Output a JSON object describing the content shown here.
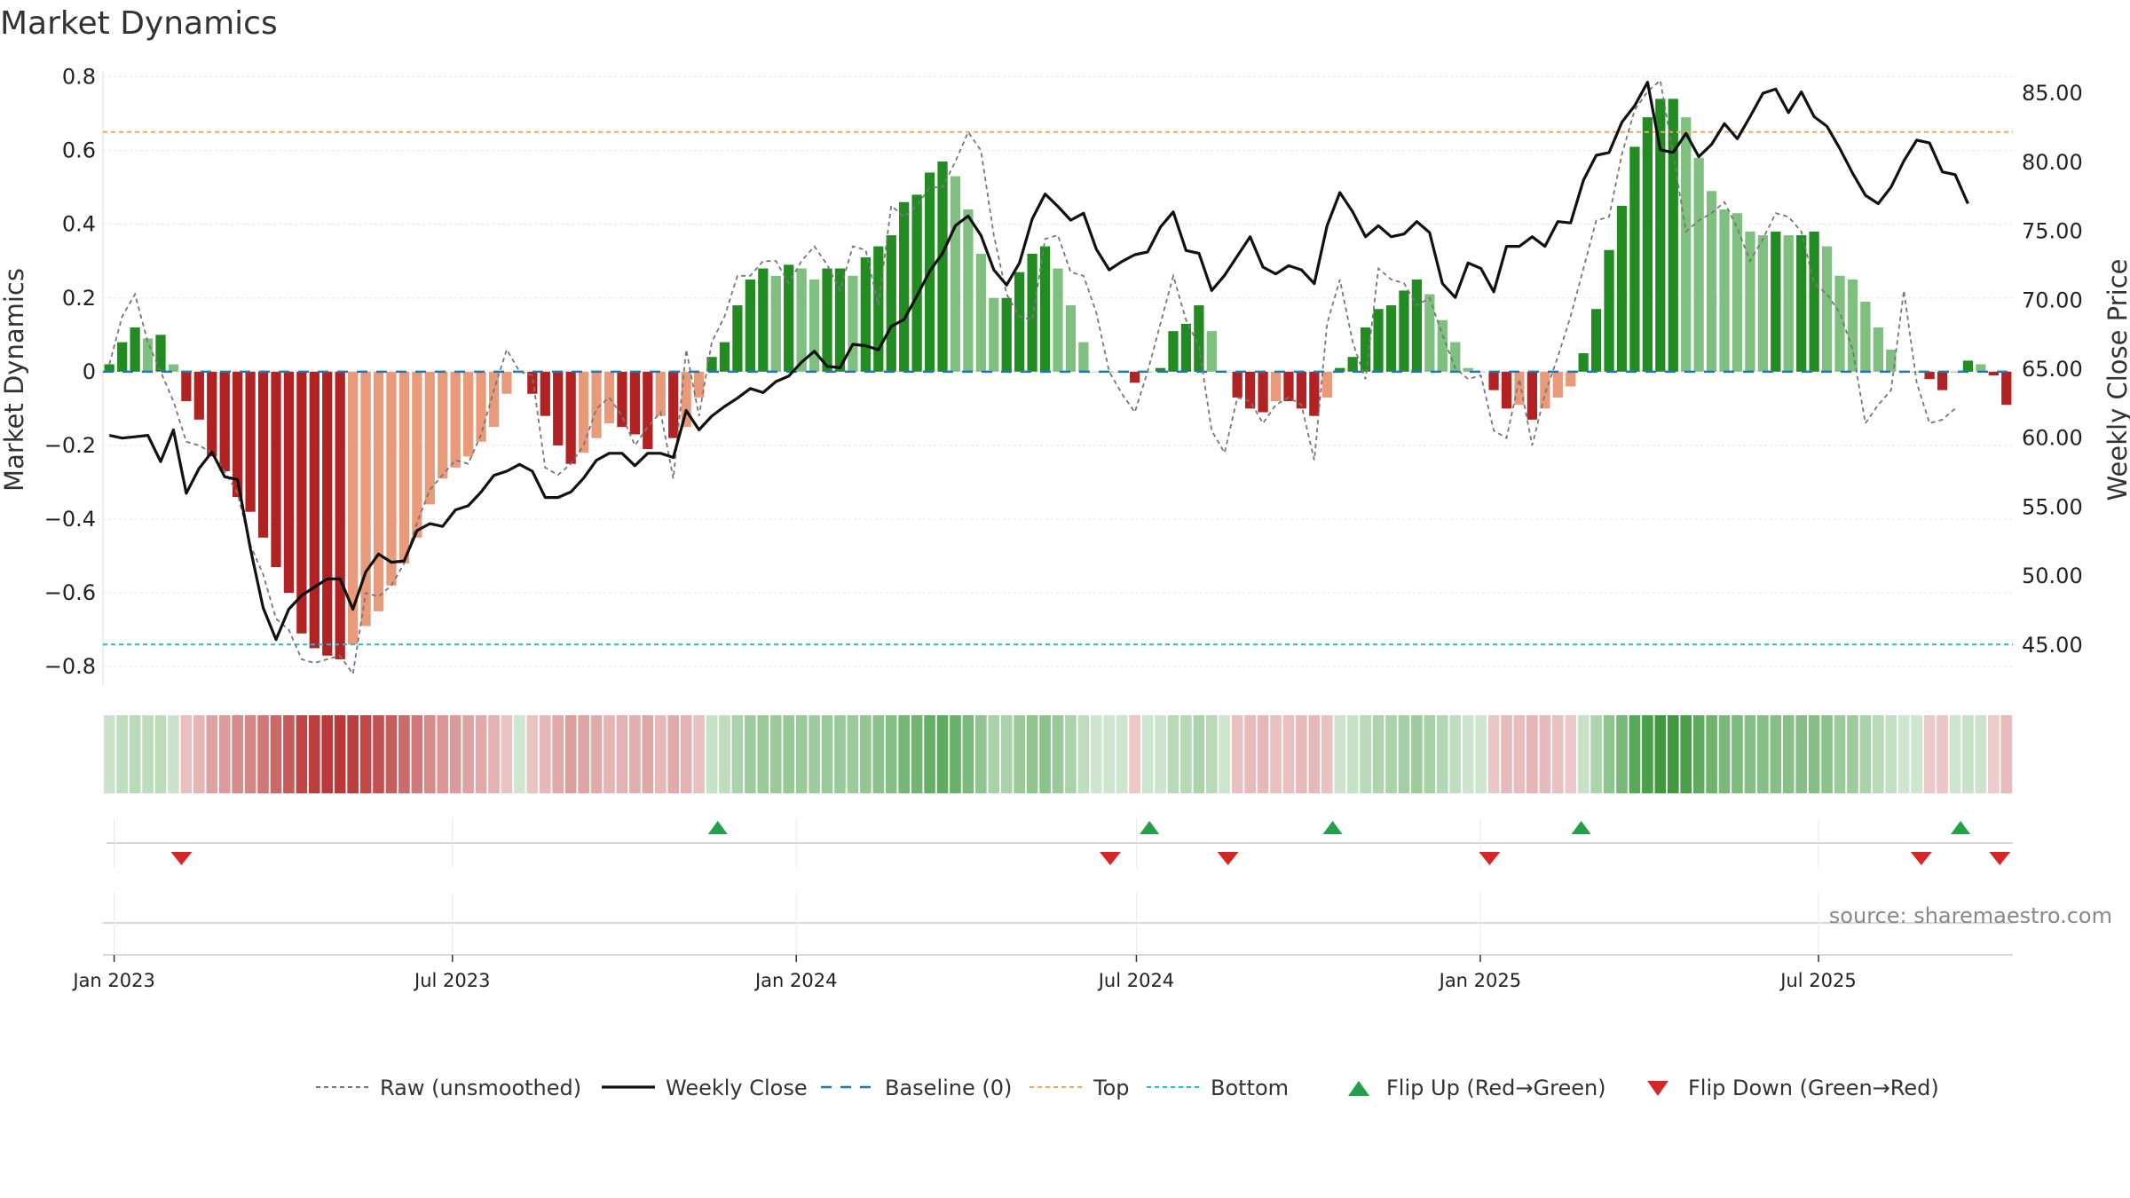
{
  "chart_data": {
    "type": "bar",
    "title": "Market Dynamics",
    "ylabel_left": "Market Dynamics",
    "ylabel_right": "Weekly Close Price",
    "ylim_left": [
      -0.85,
      0.83
    ],
    "ylim_right": [
      42.1,
      87.0
    ],
    "yticks_left": [
      "0.8",
      "0.6",
      "0.4",
      "0.2",
      "0",
      "−0.2",
      "−0.4",
      "−0.6",
      "−0.8"
    ],
    "yticks_left_values": [
      0.8,
      0.6,
      0.4,
      0.2,
      0,
      -0.2,
      -0.4,
      -0.6,
      -0.8
    ],
    "yticks_right": [
      "85.00",
      "80.00",
      "75.00",
      "70.00",
      "65.00",
      "60.00",
      "55.00",
      "50.00",
      "45.00"
    ],
    "yticks_right_values": [
      85,
      80,
      75,
      70,
      65,
      60,
      55,
      50,
      45
    ],
    "x_start": "2022-12-26",
    "x_end": "2025-10-13",
    "x_ticks": [
      {
        "label": "Jan 2023",
        "date": "2023-01-01"
      },
      {
        "label": "Jul 2023",
        "date": "2023-07-01"
      },
      {
        "label": "Jan 2024",
        "date": "2024-01-01"
      },
      {
        "label": "Jul 2024",
        "date": "2024-07-01"
      },
      {
        "label": "Jan 2025",
        "date": "2025-01-01"
      },
      {
        "label": "Jul 2025",
        "date": "2025-07-01"
      }
    ],
    "grid": true,
    "legend_position": "bottom-center",
    "top_level": 0.65,
    "bottom_level": -0.74,
    "baseline": 0,
    "weekly_close": [
      60.2,
      60.0,
      60.1,
      60.2,
      58.3,
      60.6,
      56.0,
      57.8,
      59.0,
      57.2,
      57.0,
      52.0,
      47.7,
      45.4,
      47.6,
      48.6,
      49.2,
      49.8,
      49.8,
      47.6,
      50.3,
      51.6,
      51.0,
      51.1,
      53.3,
      53.8,
      53.6,
      54.8,
      55.1,
      56.1,
      57.3,
      57.6,
      58.1,
      57.6,
      55.7,
      55.7,
      56.1,
      57.1,
      58.4,
      58.9,
      58.9,
      58.0,
      58.9,
      58.9,
      58.6,
      62.0,
      60.6,
      61.6,
      62.3,
      62.9,
      63.6,
      63.3,
      64.1,
      64.5,
      65.5,
      66.3,
      65.2,
      65.1,
      66.8,
      66.7,
      66.4,
      68.1,
      68.6,
      70.3,
      72.1,
      73.4,
      75.4,
      76.1,
      74.7,
      72.2,
      71.1,
      72.7,
      75.9,
      77.7,
      76.8,
      75.8,
      76.3,
      73.7,
      72.2,
      72.8,
      73.3,
      73.5,
      75.3,
      76.4,
      73.6,
      73.4,
      70.7,
      71.8,
      73.2,
      74.6,
      72.4,
      71.9,
      72.5,
      72.2,
      71.2,
      75.4,
      77.8,
      76.4,
      74.6,
      75.4,
      74.6,
      74.8,
      75.7,
      74.9,
      71.2,
      70.2,
      72.7,
      72.3,
      70.6,
      73.9,
      73.9,
      74.6,
      73.9,
      75.7,
      75.6,
      78.7,
      80.5,
      80.7,
      82.9,
      84.1,
      85.8,
      80.9,
      80.7,
      82.1,
      80.4,
      81.3,
      82.8,
      81.7,
      83.3,
      85.0,
      85.3,
      83.6,
      85.1,
      83.3,
      82.6,
      81.0,
      79.2,
      77.6,
      77.0,
      78.2,
      80.1,
      81.6,
      81.4,
      79.3,
      79.1,
      77.0
    ],
    "raw_unsmoothed": [
      0.02,
      0.15,
      0.21,
      0.08,
      0.0,
      -0.08,
      -0.19,
      -0.2,
      -0.22,
      -0.27,
      -0.33,
      -0.47,
      -0.55,
      -0.67,
      -0.7,
      -0.78,
      -0.79,
      -0.78,
      -0.77,
      -0.82,
      -0.6,
      -0.61,
      -0.58,
      -0.52,
      -0.41,
      -0.32,
      -0.28,
      -0.24,
      -0.25,
      -0.17,
      -0.05,
      0.06,
      0.0,
      -0.01,
      -0.26,
      -0.28,
      -0.25,
      -0.2,
      -0.1,
      -0.07,
      -0.12,
      -0.2,
      -0.15,
      -0.11,
      -0.29,
      0.06,
      -0.12,
      0.08,
      0.15,
      0.26,
      0.26,
      0.3,
      0.3,
      0.24,
      0.3,
      0.34,
      0.29,
      0.22,
      0.34,
      0.33,
      0.18,
      0.45,
      0.42,
      0.45,
      0.5,
      0.5,
      0.57,
      0.65,
      0.6,
      0.37,
      0.21,
      0.15,
      0.14,
      0.36,
      0.37,
      0.27,
      0.26,
      0.16,
      0.0,
      -0.06,
      -0.11,
      0.0,
      0.13,
      0.26,
      0.14,
      0.07,
      -0.16,
      -0.22,
      -0.07,
      -0.08,
      -0.14,
      -0.09,
      -0.07,
      -0.09,
      -0.24,
      0.13,
      0.25,
      0.08,
      -0.02,
      0.28,
      0.25,
      0.24,
      0.18,
      0.2,
      0.1,
      0.01,
      -0.02,
      -0.01,
      -0.16,
      -0.18,
      -0.02,
      -0.2,
      -0.06,
      0.04,
      0.15,
      0.28,
      0.41,
      0.42,
      0.59,
      0.71,
      0.76,
      0.79,
      0.59,
      0.38,
      0.41,
      0.43,
      0.46,
      0.39,
      0.3,
      0.36,
      0.43,
      0.42,
      0.38,
      0.24,
      0.21,
      0.16,
      0.06,
      -0.14,
      -0.09,
      -0.05,
      0.22,
      -0.03,
      -0.14,
      -0.13,
      -0.1
    ],
    "bars": [
      0.02,
      0.08,
      0.12,
      0.09,
      0.1,
      0.02,
      -0.08,
      -0.13,
      -0.23,
      -0.27,
      -0.34,
      -0.38,
      -0.45,
      -0.53,
      -0.6,
      -0.71,
      -0.75,
      -0.77,
      -0.78,
      -0.74,
      -0.69,
      -0.65,
      -0.58,
      -0.52,
      -0.45,
      -0.36,
      -0.29,
      -0.26,
      -0.23,
      -0.19,
      -0.15,
      -0.06,
      0.0,
      -0.06,
      -0.12,
      -0.2,
      -0.25,
      -0.22,
      -0.18,
      -0.14,
      -0.15,
      -0.17,
      -0.21,
      -0.12,
      -0.18,
      -0.15,
      -0.07,
      0.04,
      0.08,
      0.18,
      0.25,
      0.28,
      0.26,
      0.29,
      0.28,
      0.25,
      0.28,
      0.28,
      0.26,
      0.31,
      0.34,
      0.37,
      0.46,
      0.48,
      0.54,
      0.57,
      0.53,
      0.44,
      0.32,
      0.2,
      0.2,
      0.27,
      0.32,
      0.34,
      0.28,
      0.18,
      0.08,
      0.0,
      0.0,
      0.0,
      -0.03,
      0.0,
      0.01,
      0.11,
      0.13,
      0.18,
      0.11,
      0.0,
      -0.07,
      -0.1,
      -0.11,
      -0.08,
      -0.08,
      -0.1,
      -0.12,
      -0.07,
      0.01,
      0.04,
      0.12,
      0.17,
      0.18,
      0.22,
      0.25,
      0.21,
      0.14,
      0.08,
      0.01,
      0.0,
      -0.05,
      -0.1,
      -0.09,
      -0.13,
      -0.1,
      -0.07,
      -0.04,
      0.05,
      0.17,
      0.33,
      0.45,
      0.61,
      0.69,
      0.74,
      0.74,
      0.69,
      0.58,
      0.49,
      0.44,
      0.43,
      0.38,
      0.37,
      0.38,
      0.37,
      0.37,
      0.38,
      0.34,
      0.26,
      0.25,
      0.19,
      0.12,
      0.06,
      0.0,
      0.0,
      -0.02,
      -0.05,
      0.0,
      0.03,
      0.02,
      -0.01,
      -0.09
    ],
    "flip_up_dates": [
      "2023-11-20",
      "2024-07-08",
      "2024-10-14",
      "2025-02-24",
      "2025-09-15"
    ],
    "flip_down_dates": [
      "2023-02-06",
      "2024-06-17",
      "2024-08-19",
      "2025-01-06",
      "2025-08-25",
      "2025-10-06"
    ],
    "colors": {
      "strong_up": "#228b22",
      "weak_up": "#7fbf7f",
      "strong_down": "#b22222",
      "weak_down": "#e89a7a",
      "raw": "#777777",
      "weekly_close": "#111111",
      "baseline": "#1f77b4",
      "top": "#f4a460",
      "bottom": "#20c0c8",
      "flip_up": "#22a04a",
      "flip_down": "#d62728"
    },
    "legend": [
      {
        "label": "Raw (unsmoothed)",
        "key": "raw"
      },
      {
        "label": "Weekly Close",
        "key": "weekly_close"
      },
      {
        "label": "Baseline (0)",
        "key": "baseline"
      },
      {
        "label": "Top",
        "key": "top"
      },
      {
        "label": "Bottom",
        "key": "bottom"
      },
      {
        "label": "Flip Up (Red→Green)",
        "key": "flip_up"
      },
      {
        "label": "Flip Down (Green→Red)",
        "key": "flip_down"
      }
    ],
    "source": "source: sharemaestro.com"
  }
}
